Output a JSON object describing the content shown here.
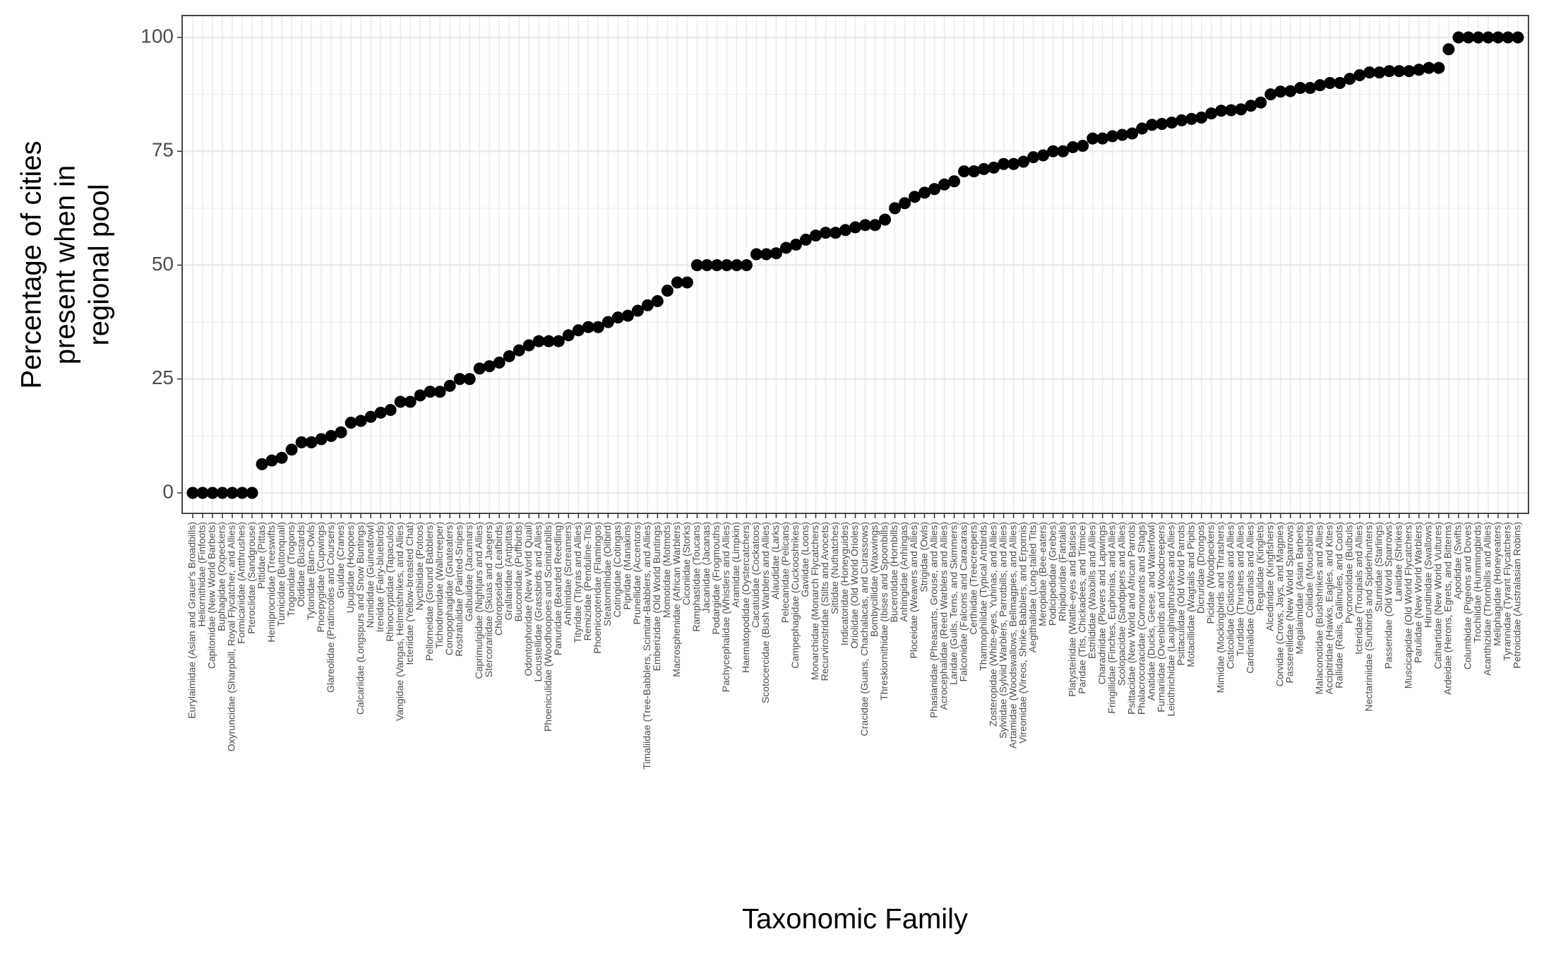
{
  "chart_data": {
    "type": "scatter",
    "x_label": "Taxonomic Family",
    "y_label": [
      "Percentage of cities",
      "present when in",
      "regional pool"
    ],
    "color": "#000000",
    "grid": true,
    "ylim": [
      -4.5,
      104.8
    ],
    "yticks": [
      0,
      25,
      50,
      75,
      100
    ],
    "categories": [
      "Eurylaimidae (Asian and Grauer's Broadbills)",
      "Heliornithidae (Finfoots)",
      "Capitonidae (New World Barbets)",
      "Buphagidae (Oxpeckers)",
      "Oxyruncidae (Sharpbill, Royal Flycatcher, and Allies)",
      "Formicariidae (Antthrushes)",
      "Pteroclidae (Sandgrouse)",
      "Pittidae (Pittas)",
      "Hemiprocnidae (Treeswifts)",
      "Turnicidae (Buttonquail)",
      "Trogonidae (Trogons)",
      "Otididae (Bustards)",
      "Tytonidae (Barn-Owls)",
      "Pnoepygidae (Cupwings)",
      "Glareolidae (Pratincoles and Coursers)",
      "Gruidae (Cranes)",
      "Upupidae (Hoopoes)",
      "Calcariidae (Longspurs and Snow Buntings)",
      "Numididae (Guineafowl)",
      "Irenidae (Fairy-bluebirds)",
      "Rhinocryptidae (Tapaculos)",
      "Vangidae (Vangas, Helmetshrikes, and Allies)",
      "Icteriidae (Yellow-breasted Chat)",
      "Nyctibiidae (Potoos)",
      "Pellorneidae (Ground Babblers)",
      "Tichodromidae (Wallcreeper)",
      "Conopophagidae (Gnateaters)",
      "Rostratulidae (Painted-Snipes)",
      "Galbulidae (Jacamars)",
      "Caprimulgidae (Nightjars and Allies)",
      "Stercorariidae (Skuas and Jaegers)",
      "Chloropseidae (Leafbirds)",
      "Grallariidae (Antpittas)",
      "Bucconidae (Puffbirds)",
      "Odontophoridae (New World Quail)",
      "Locustellidae (Grassbirds and Allies)",
      "Phoeniculidae (Woodhoopoes and Scimitarbills)",
      "Panuridae (Bearded Reedling)",
      "Anhimidae (Screamers)",
      "Tityridae (Tityras and Allies)",
      "Remizidae (Penduline-Tits)",
      "Phoenicopteridae (Flamingos)",
      "Steatornithidae (Oilbird)",
      "Cotingidae (Cotingas)",
      "Pipridae (Manakins)",
      "Prunellidae (Accentors)",
      "Timaliidae (Tree-Babblers, Scimitar-Babblers, and Allies)",
      "Emberizidae (Old World Buntings)",
      "Momotidae (Motmots)",
      "Macrosphenidae (African Warblers)",
      "Ciconiidae (Storks)",
      "Ramphastidae (Toucans)",
      "Jacanidae (Jacanas)",
      "Podargidae (Frogmouths)",
      "Pachycephalidae (Whistlers and Allies)",
      "Aramidae (Limpkin)",
      "Haematopodidae (Oystercatchers)",
      "Cacatuidae (Cockatoos)",
      "Scotocercidae (Bush Warblers and Allies)",
      "Alaudidae (Larks)",
      "Pelecanidae (Pelicans)",
      "Campephagidae (Cuckooshrikes)",
      "Gaviidae (Loons)",
      "Monarchidae (Monarch Flycatchers)",
      "Recurvirostridae (Stilts and Avocets)",
      "Sittidae (Nuthatches)",
      "Indicatoridae (Honeyguides)",
      "Oriolidae (Old World Orioles)",
      "Cracidae (Guans, Chachalacas, and Curassows)",
      "Bombycillidae (Waxwings)",
      "Threskiornithidae (Ibises and Spoonbills)",
      "Bucerotidae (Hornbills)",
      "Anhingidae (Anhingas)",
      "Ploceidae (Weavers and Allies)",
      "Strigidae (Owls)",
      "Phasianidae (Pheasants, Grouse, and Allies)",
      "Acrocephalidae (Reed Warblers and Allies)",
      "Laridae (Gulls, Terns, and Skimmers)",
      "Falconidae (Falcons and Caracaras)",
      "Certhiidae (Treecreepers)",
      "Thamnophilidae (Typical Antbirds)",
      "Zosteropidae (White-eyes, Yuhinas, and Allies)",
      "Sylviidae (Sylviid Warblers, Parrotbills, and Allies)",
      "Artamidae (Woodswallows, Bellmagpies, and Allies)",
      "Vireonidae (Vireos, Shrike-Babblers, and Erpornis)",
      "Aegithalidae (Long-tailed Tits)",
      "Meropidae (Bee-eaters)",
      "Podicipedidae (Grebes)",
      "Rhipiduridae (Fantails)",
      "Platysteiridae (Wattle-eyes and Batises)",
      "Paridae (Tits, Chickadees, and Titmice)",
      "Estrildidae (Waxbills and Allies)",
      "Charadriidae (Plovers and Lapwings)",
      "Fringillidae (Finches, Euphonias, and Allies)",
      "Scolopacidae (Sandpipers and Allies)",
      "Psittacidae (New World and African Parrots)",
      "Phalacrocoracidae (Cormorants and Shags)",
      "Anatidae (Ducks, Geese, and Waterfowl)",
      "Furnariidae (Ovenbirds and Woodcreepers)",
      "Leiothrichidae (Laughingthrushes and Allies)",
      "Psittaculidae (Old World Parrots)",
      "Motacillidae (Wagtails and Pipits)",
      "Dicruridae (Drongos)",
      "Picidae (Woodpeckers)",
      "Mimidae (Mockingbirds and Thrashers)",
      "Cisticolidae (Cisticolas and Allies)",
      "Turdidae (Thrushes and Allies)",
      "Cardinalidae (Cardinals and Allies)",
      "Regulidae (Kinglets)",
      "Alcedinidae (Kingfishers)",
      "Corvidae (Crows, Jays, and Magpies)",
      "Passerellidae (New World Sparrows)",
      "Megalaimidae (Asian Barbets)",
      "Coliidae (Mousebirds)",
      "Malaconotidae (Bushshrikes and Allies)",
      "Accipitridae (Hawks, Eagles, and Kites)",
      "Rallidae (Rails, Gallinules, and Coots)",
      "Pycnonotidae (Bulbuls)",
      "Icteridae (Troupials and Allies)",
      "Nectariniidae (Sunbirds and Spiderhunters)",
      "Sturnidae (Starlings)",
      "Passeridae (Old World Sparrows)",
      "Laniidae (Shrikes)",
      "Muscicapidae (Old World Flycatchers)",
      "Parulidae (New World Warblers)",
      "Hirundinidae (Swallows)",
      "Cathartidae (New World Vultures)",
      "Ardeidae (Herons, Egrets, and Bitterns)",
      "Apodidae (Swifts)",
      "Columbidae (Pigeons and Doves)",
      "Trochilidae (Hummingbirds)",
      "Acanthizidae (Thornbills and Allies)",
      "Meliphagidae (Honeyeaters)",
      "Tyrannidae (Tyrant Flycatchers)",
      "Petroicidae (Australasian Robins)"
    ],
    "values": [
      0,
      0,
      0,
      0,
      0,
      0,
      0,
      6.3,
      7.1,
      7.7,
      9.5,
      11.1,
      11.1,
      11.8,
      12.5,
      13.3,
      15.4,
      15.8,
      16.7,
      17.6,
      18.2,
      20,
      20,
      21.4,
      22.2,
      22.2,
      23.5,
      25,
      25,
      27.3,
      27.8,
      28.6,
      30,
      31.3,
      32.4,
      33.3,
      33.3,
      33.3,
      34.6,
      35.7,
      36.4,
      36.4,
      37.5,
      38.5,
      38.9,
      40,
      41.2,
      42.1,
      44.4,
      46.2,
      46.2,
      50,
      50,
      50,
      50,
      50,
      50,
      52.4,
      52.4,
      52.6,
      53.8,
      54.5,
      55.6,
      56.5,
      57.1,
      57.1,
      57.7,
      58.3,
      58.8,
      58.8,
      60,
      62.5,
      63.6,
      65,
      65.9,
      66.7,
      67.7,
      68.4,
      70.6,
      70.6,
      71.1,
      71.4,
      72.2,
      72.2,
      72.7,
      73.7,
      74.1,
      75,
      75,
      75.9,
      76.2,
      77.8,
      77.8,
      78.3,
      78.6,
      78.9,
      80,
      80.8,
      81,
      81.3,
      81.8,
      82.1,
      82.4,
      83.3,
      83.9,
      84,
      84.2,
      85,
      85.7,
      87.5,
      88.1,
      88.2,
      88.9,
      88.9,
      89.5,
      90,
      90,
      90.9,
      91.7,
      92.3,
      92.3,
      92.6,
      92.6,
      92.6,
      92.9,
      93.3,
      93.3,
      97.4,
      100,
      100,
      100,
      100,
      100,
      100,
      100
    ]
  }
}
